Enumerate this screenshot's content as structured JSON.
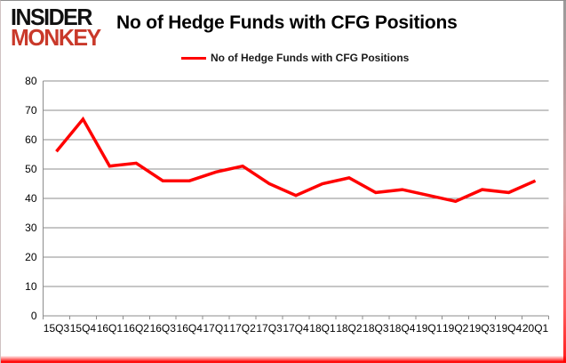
{
  "logo": {
    "line1": "INSIDER",
    "line2": "MONKEY",
    "line1_color": "#111111",
    "line2_color": "#c9392a"
  },
  "header": {
    "title": "No of Hedge Funds with CFG Positions"
  },
  "legend": {
    "label": "No of Hedge Funds with CFG Positions",
    "swatch_color": "#ff0000"
  },
  "chart_data": {
    "type": "line",
    "title": "No of Hedge Funds with CFG Positions",
    "categories": [
      "15Q3",
      "15Q4",
      "16Q1",
      "16Q2",
      "16Q3",
      "16Q4",
      "17Q1",
      "17Q2",
      "17Q3",
      "17Q4",
      "18Q1",
      "18Q2",
      "18Q3",
      "18Q4",
      "19Q1",
      "19Q2",
      "19Q3",
      "19Q4",
      "20Q1"
    ],
    "series": [
      {
        "name": "No of Hedge Funds with CFG Positions",
        "color": "#ff0000",
        "values": [
          56,
          67,
          51,
          52,
          46,
          46,
          49,
          51,
          45,
          41,
          45,
          47,
          42,
          43,
          41,
          39,
          43,
          42,
          46
        ]
      }
    ],
    "xlabel": "",
    "ylabel": "",
    "ylim": [
      0,
      80
    ],
    "ytick_interval": 10,
    "yticks": [
      0,
      10,
      20,
      30,
      40,
      50,
      60,
      70,
      80
    ],
    "grid": true,
    "gridline_color": "#8c8c8c",
    "axis_color": "#8c8c8c",
    "tick_label_color": "#000000",
    "legend_position": "top"
  }
}
